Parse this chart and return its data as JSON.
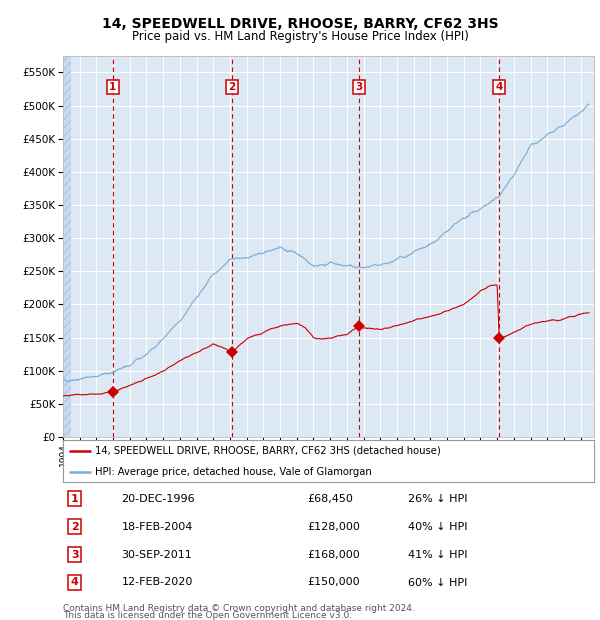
{
  "title": "14, SPEEDWELL DRIVE, RHOOSE, BARRY, CF62 3HS",
  "subtitle": "Price paid vs. HM Land Registry's House Price Index (HPI)",
  "legend_label_red": "14, SPEEDWELL DRIVE, RHOOSE, BARRY, CF62 3HS (detached house)",
  "legend_label_blue": "HPI: Average price, detached house, Vale of Glamorgan",
  "footnote1": "Contains HM Land Registry data © Crown copyright and database right 2024.",
  "footnote2": "This data is licensed under the Open Government Licence v3.0.",
  "transactions": [
    {
      "num": 1,
      "date": "20-DEC-1996",
      "price": 68450,
      "year_x": 1996.97
    },
    {
      "num": 2,
      "date": "18-FEB-2004",
      "price": 128000,
      "year_x": 2004.13
    },
    {
      "num": 3,
      "date": "30-SEP-2011",
      "price": 168000,
      "year_x": 2011.75
    },
    {
      "num": 4,
      "date": "12-FEB-2020",
      "price": 150000,
      "year_x": 2020.12
    }
  ],
  "table_rows": [
    {
      "num": 1,
      "date": "20-DEC-1996",
      "price": "£68,450",
      "pct": "26% ↓ HPI"
    },
    {
      "num": 2,
      "date": "18-FEB-2004",
      "price": "£128,000",
      "pct": "40% ↓ HPI"
    },
    {
      "num": 3,
      "date": "30-SEP-2011",
      "price": "£168,000",
      "pct": "41% ↓ HPI"
    },
    {
      "num": 4,
      "date": "12-FEB-2020",
      "price": "£150,000",
      "pct": "60% ↓ HPI"
    }
  ],
  "ylim": [
    0,
    575000
  ],
  "xlim_start": 1994.0,
  "xlim_end": 2025.8,
  "background_color": "#dce9f5",
  "red_color": "#cc0000",
  "blue_color": "#7aaed6",
  "grid_color": "#ffffff",
  "dashed_line_color": "#cc0000",
  "title_fontsize": 10,
  "subtitle_fontsize": 8.5,
  "footnote_fontsize": 6.5,
  "hpi_keypoints": [
    [
      1994.0,
      85000
    ],
    [
      1995.0,
      88000
    ],
    [
      1996.0,
      92000
    ],
    [
      1997.0,
      98000
    ],
    [
      1998.0,
      108000
    ],
    [
      1999.0,
      125000
    ],
    [
      2000.0,
      148000
    ],
    [
      2001.0,
      175000
    ],
    [
      2002.0,
      210000
    ],
    [
      2003.0,
      245000
    ],
    [
      2004.0,
      268000
    ],
    [
      2005.0,
      272000
    ],
    [
      2006.0,
      278000
    ],
    [
      2007.0,
      285000
    ],
    [
      2008.0,
      278000
    ],
    [
      2009.0,
      258000
    ],
    [
      2010.0,
      262000
    ],
    [
      2011.0,
      258000
    ],
    [
      2012.0,
      255000
    ],
    [
      2013.0,
      258000
    ],
    [
      2014.0,
      268000
    ],
    [
      2015.0,
      278000
    ],
    [
      2016.0,
      290000
    ],
    [
      2017.0,
      310000
    ],
    [
      2018.0,
      330000
    ],
    [
      2019.0,
      345000
    ],
    [
      2020.0,
      360000
    ],
    [
      2021.0,
      395000
    ],
    [
      2022.0,
      440000
    ],
    [
      2023.0,
      455000
    ],
    [
      2024.0,
      470000
    ],
    [
      2025.0,
      490000
    ],
    [
      2025.5,
      500000
    ]
  ],
  "red_keypoints": [
    [
      1994.0,
      62000
    ],
    [
      1995.0,
      64000
    ],
    [
      1996.0,
      65000
    ],
    [
      1996.97,
      68450
    ],
    [
      1997.5,
      72000
    ],
    [
      1998.0,
      78000
    ],
    [
      1999.0,
      88000
    ],
    [
      2000.0,
      100000
    ],
    [
      2001.0,
      115000
    ],
    [
      2002.0,
      128000
    ],
    [
      2003.0,
      140000
    ],
    [
      2004.13,
      128000
    ],
    [
      2005.0,
      148000
    ],
    [
      2006.0,
      158000
    ],
    [
      2007.0,
      168000
    ],
    [
      2008.0,
      172000
    ],
    [
      2008.5,
      165000
    ],
    [
      2009.0,
      150000
    ],
    [
      2009.5,
      148000
    ],
    [
      2010.0,
      150000
    ],
    [
      2011.0,
      155000
    ],
    [
      2011.75,
      168000
    ],
    [
      2012.0,
      165000
    ],
    [
      2013.0,
      162000
    ],
    [
      2014.0,
      168000
    ],
    [
      2015.0,
      175000
    ],
    [
      2016.0,
      182000
    ],
    [
      2017.0,
      190000
    ],
    [
      2018.0,
      200000
    ],
    [
      2018.5,
      210000
    ],
    [
      2019.0,
      220000
    ],
    [
      2019.5,
      228000
    ],
    [
      2020.0,
      230000
    ],
    [
      2020.12,
      150000
    ],
    [
      2020.5,
      152000
    ],
    [
      2021.0,
      158000
    ],
    [
      2022.0,
      170000
    ],
    [
      2023.0,
      175000
    ],
    [
      2024.0,
      178000
    ],
    [
      2025.0,
      185000
    ],
    [
      2025.5,
      188000
    ]
  ]
}
